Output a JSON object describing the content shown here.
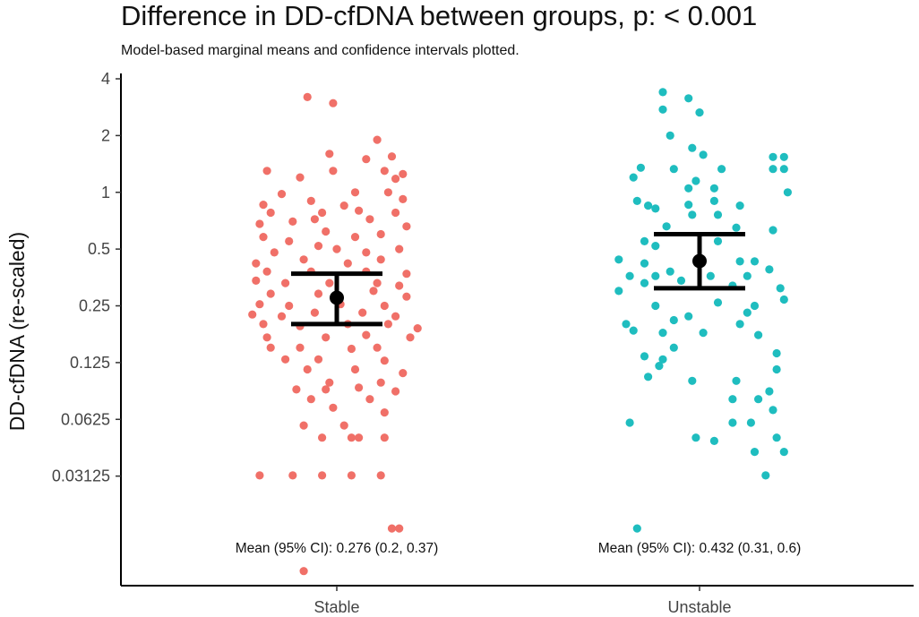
{
  "chart_data": {
    "type": "scatter",
    "title": "Difference in DD-cfDNA between groups, p: < 0.001",
    "subtitle": "Model-based marginal means and confidence intervals plotted.",
    "xlabel": "",
    "ylabel": "DD-cfDNA (re-scaled)",
    "y_scale": "log2",
    "ylim": [
      0.0082,
      4.0
    ],
    "y_ticks": [
      {
        "value": 4,
        "label": "4"
      },
      {
        "value": 2,
        "label": "2"
      },
      {
        "value": 1,
        "label": "1"
      },
      {
        "value": 0.5,
        "label": "0.5"
      },
      {
        "value": 0.25,
        "label": "0.25"
      },
      {
        "value": 0.125,
        "label": "0.125"
      },
      {
        "value": 0.0625,
        "label": "0.0625"
      },
      {
        "value": 0.03125,
        "label": "0.03125"
      }
    ],
    "categories": [
      "Stable",
      "Unstable"
    ],
    "series": [
      {
        "name": "Stable",
        "color": "#f07068",
        "mean": 0.276,
        "ci": [
          0.2,
          0.37
        ],
        "annotation": "Mean (95% CI): 0.276 (0.2, 0.37)",
        "points": [
          {
            "j": -0.08,
            "y": 3.2
          },
          {
            "j": -0.01,
            "y": 2.97
          },
          {
            "j": 0.11,
            "y": 1.9
          },
          {
            "j": -0.02,
            "y": 1.6
          },
          {
            "j": 0.08,
            "y": 1.5
          },
          {
            "j": 0.15,
            "y": 1.55
          },
          {
            "j": -0.19,
            "y": 1.3
          },
          {
            "j": -0.01,
            "y": 1.3
          },
          {
            "j": 0.13,
            "y": 1.3
          },
          {
            "j": 0.18,
            "y": 1.25
          },
          {
            "j": -0.1,
            "y": 1.2
          },
          {
            "j": 0.16,
            "y": 1.18
          },
          {
            "j": -0.15,
            "y": 0.98
          },
          {
            "j": 0.05,
            "y": 1.0
          },
          {
            "j": 0.14,
            "y": 1.0
          },
          {
            "j": -0.2,
            "y": 0.86
          },
          {
            "j": -0.07,
            "y": 0.9
          },
          {
            "j": 0.02,
            "y": 0.85
          },
          {
            "j": 0.18,
            "y": 0.92
          },
          {
            "j": -0.18,
            "y": 0.78
          },
          {
            "j": -0.04,
            "y": 0.78
          },
          {
            "j": 0.06,
            "y": 0.8
          },
          {
            "j": 0.16,
            "y": 0.78
          },
          {
            "j": -0.21,
            "y": 0.68
          },
          {
            "j": -0.12,
            "y": 0.7
          },
          {
            "j": -0.06,
            "y": 0.72
          },
          {
            "j": 0.09,
            "y": 0.72
          },
          {
            "j": 0.19,
            "y": 0.66
          },
          {
            "j": -0.2,
            "y": 0.58
          },
          {
            "j": -0.03,
            "y": 0.62
          },
          {
            "j": 0.05,
            "y": 0.58
          },
          {
            "j": 0.12,
            "y": 0.6
          },
          {
            "j": -0.13,
            "y": 0.55
          },
          {
            "j": -0.17,
            "y": 0.48
          },
          {
            "j": -0.05,
            "y": 0.52
          },
          {
            "j": 0.0,
            "y": 0.5
          },
          {
            "j": 0.08,
            "y": 0.48
          },
          {
            "j": 0.17,
            "y": 0.5
          },
          {
            "j": -0.22,
            "y": 0.42
          },
          {
            "j": -0.09,
            "y": 0.44
          },
          {
            "j": 0.03,
            "y": 0.42
          },
          {
            "j": 0.12,
            "y": 0.44
          },
          {
            "j": -0.19,
            "y": 0.38
          },
          {
            "j": -0.07,
            "y": 0.38
          },
          {
            "j": 0.08,
            "y": 0.38
          },
          {
            "j": 0.19,
            "y": 0.37
          },
          {
            "j": -0.22,
            "y": 0.34
          },
          {
            "j": -0.14,
            "y": 0.33
          },
          {
            "j": -0.02,
            "y": 0.33
          },
          {
            "j": 0.11,
            "y": 0.33
          },
          {
            "j": 0.17,
            "y": 0.32
          },
          {
            "j": -0.18,
            "y": 0.29
          },
          {
            "j": -0.05,
            "y": 0.29
          },
          {
            "j": 0.1,
            "y": 0.3
          },
          {
            "j": 0.19,
            "y": 0.28
          },
          {
            "j": -0.21,
            "y": 0.255
          },
          {
            "j": -0.13,
            "y": 0.25
          },
          {
            "j": 0.01,
            "y": 0.255
          },
          {
            "j": 0.13,
            "y": 0.25
          },
          {
            "j": -0.23,
            "y": 0.225
          },
          {
            "j": -0.15,
            "y": 0.22
          },
          {
            "j": -0.06,
            "y": 0.23
          },
          {
            "j": 0.07,
            "y": 0.23
          },
          {
            "j": 0.16,
            "y": 0.22
          },
          {
            "j": -0.2,
            "y": 0.2
          },
          {
            "j": -0.1,
            "y": 0.195
          },
          {
            "j": 0.03,
            "y": 0.2
          },
          {
            "j": 0.14,
            "y": 0.2
          },
          {
            "j": 0.22,
            "y": 0.19
          },
          {
            "j": -0.19,
            "y": 0.17
          },
          {
            "j": -0.03,
            "y": 0.17
          },
          {
            "j": 0.08,
            "y": 0.175
          },
          {
            "j": 0.2,
            "y": 0.17
          },
          {
            "j": -0.18,
            "y": 0.15
          },
          {
            "j": -0.1,
            "y": 0.15
          },
          {
            "j": 0.04,
            "y": 0.148
          },
          {
            "j": 0.11,
            "y": 0.15
          },
          {
            "j": -0.14,
            "y": 0.13
          },
          {
            "j": -0.05,
            "y": 0.13
          },
          {
            "j": 0.13,
            "y": 0.128
          },
          {
            "j": -0.08,
            "y": 0.115
          },
          {
            "j": 0.05,
            "y": 0.115
          },
          {
            "j": 0.18,
            "y": 0.11
          },
          {
            "j": -0.02,
            "y": 0.098
          },
          {
            "j": 0.12,
            "y": 0.098
          },
          {
            "j": -0.11,
            "y": 0.09
          },
          {
            "j": -0.03,
            "y": 0.09
          },
          {
            "j": 0.06,
            "y": 0.092
          },
          {
            "j": 0.16,
            "y": 0.088
          },
          {
            "j": -0.07,
            "y": 0.08
          },
          {
            "j": 0.09,
            "y": 0.08
          },
          {
            "j": -0.01,
            "y": 0.072
          },
          {
            "j": 0.13,
            "y": 0.068
          },
          {
            "j": -0.09,
            "y": 0.058
          },
          {
            "j": 0.02,
            "y": 0.058
          },
          {
            "j": -0.04,
            "y": 0.05
          },
          {
            "j": 0.04,
            "y": 0.05
          },
          {
            "j": 0.06,
            "y": 0.05
          },
          {
            "j": 0.13,
            "y": 0.05
          },
          {
            "j": -0.21,
            "y": 0.0315
          },
          {
            "j": -0.12,
            "y": 0.0315
          },
          {
            "j": -0.04,
            "y": 0.0315
          },
          {
            "j": 0.04,
            "y": 0.0315
          },
          {
            "j": 0.12,
            "y": 0.0315
          },
          {
            "j": 0.15,
            "y": 0.0165
          },
          {
            "j": 0.17,
            "y": 0.0165
          },
          {
            "j": -0.09,
            "y": 0.0098
          }
        ]
      },
      {
        "name": "Unstable",
        "color": "#1fbdbf",
        "mean": 0.432,
        "ci": [
          0.31,
          0.6
        ],
        "annotation": "Mean (95% CI): 0.432 (0.31, 0.6)",
        "points": [
          {
            "j": -0.1,
            "y": 3.4
          },
          {
            "j": -0.03,
            "y": 3.15
          },
          {
            "j": -0.1,
            "y": 2.75
          },
          {
            "j": 0.0,
            "y": 2.65
          },
          {
            "j": -0.08,
            "y": 2.0
          },
          {
            "j": -0.02,
            "y": 1.72
          },
          {
            "j": 0.01,
            "y": 1.58
          },
          {
            "j": 0.2,
            "y": 1.54
          },
          {
            "j": 0.23,
            "y": 1.54
          },
          {
            "j": -0.16,
            "y": 1.35
          },
          {
            "j": -0.07,
            "y": 1.33
          },
          {
            "j": 0.06,
            "y": 1.33
          },
          {
            "j": 0.2,
            "y": 1.33
          },
          {
            "j": 0.23,
            "y": 1.33
          },
          {
            "j": -0.18,
            "y": 1.2
          },
          {
            "j": -0.01,
            "y": 1.15
          },
          {
            "j": -0.03,
            "y": 1.05
          },
          {
            "j": 0.04,
            "y": 1.05
          },
          {
            "j": 0.24,
            "y": 1.0
          },
          {
            "j": -0.17,
            "y": 0.9
          },
          {
            "j": -0.14,
            "y": 0.85
          },
          {
            "j": -0.12,
            "y": 0.82
          },
          {
            "j": -0.03,
            "y": 0.86
          },
          {
            "j": 0.04,
            "y": 0.9
          },
          {
            "j": 0.11,
            "y": 0.85
          },
          {
            "j": -0.02,
            "y": 0.76
          },
          {
            "j": 0.05,
            "y": 0.76
          },
          {
            "j": -0.09,
            "y": 0.66
          },
          {
            "j": 0.1,
            "y": 0.65
          },
          {
            "j": 0.2,
            "y": 0.63
          },
          {
            "j": -0.15,
            "y": 0.55
          },
          {
            "j": -0.12,
            "y": 0.52
          },
          {
            "j": 0.05,
            "y": 0.55
          },
          {
            "j": -0.22,
            "y": 0.44
          },
          {
            "j": -0.15,
            "y": 0.42
          },
          {
            "j": 0.11,
            "y": 0.43
          },
          {
            "j": 0.15,
            "y": 0.43
          },
          {
            "j": -0.19,
            "y": 0.36
          },
          {
            "j": -0.12,
            "y": 0.36
          },
          {
            "j": -0.08,
            "y": 0.38
          },
          {
            "j": 0.03,
            "y": 0.36
          },
          {
            "j": 0.13,
            "y": 0.36
          },
          {
            "j": 0.19,
            "y": 0.39
          },
          {
            "j": -0.15,
            "y": 0.33
          },
          {
            "j": -0.05,
            "y": 0.34
          },
          {
            "j": 0.09,
            "y": 0.32
          },
          {
            "j": -0.22,
            "y": 0.3
          },
          {
            "j": 0.22,
            "y": 0.31
          },
          {
            "j": 0.23,
            "y": 0.27
          },
          {
            "j": -0.12,
            "y": 0.25
          },
          {
            "j": 0.05,
            "y": 0.26
          },
          {
            "j": 0.15,
            "y": 0.25
          },
          {
            "j": -0.03,
            "y": 0.22
          },
          {
            "j": 0.13,
            "y": 0.23
          },
          {
            "j": -0.07,
            "y": 0.21
          },
          {
            "j": 0.11,
            "y": 0.2
          },
          {
            "j": -0.2,
            "y": 0.2
          },
          {
            "j": -0.18,
            "y": 0.185
          },
          {
            "j": -0.1,
            "y": 0.18
          },
          {
            "j": 0.01,
            "y": 0.18
          },
          {
            "j": 0.16,
            "y": 0.175
          },
          {
            "j": -0.07,
            "y": 0.15
          },
          {
            "j": 0.21,
            "y": 0.14
          },
          {
            "j": -0.15,
            "y": 0.135
          },
          {
            "j": -0.1,
            "y": 0.13
          },
          {
            "j": -0.11,
            "y": 0.12
          },
          {
            "j": 0.21,
            "y": 0.115
          },
          {
            "j": -0.14,
            "y": 0.105
          },
          {
            "j": -0.02,
            "y": 0.1
          },
          {
            "j": 0.1,
            "y": 0.1
          },
          {
            "j": 0.19,
            "y": 0.088
          },
          {
            "j": 0.09,
            "y": 0.08
          },
          {
            "j": 0.16,
            "y": 0.08
          },
          {
            "j": 0.2,
            "y": 0.07
          },
          {
            "j": -0.19,
            "y": 0.06
          },
          {
            "j": 0.09,
            "y": 0.06
          },
          {
            "j": 0.14,
            "y": 0.06
          },
          {
            "j": 0.04,
            "y": 0.048
          },
          {
            "j": -0.01,
            "y": 0.05
          },
          {
            "j": 0.21,
            "y": 0.05
          },
          {
            "j": 0.15,
            "y": 0.042
          },
          {
            "j": 0.23,
            "y": 0.042
          },
          {
            "j": 0.18,
            "y": 0.0315
          },
          {
            "j": -0.17,
            "y": 0.0165
          }
        ]
      }
    ]
  }
}
